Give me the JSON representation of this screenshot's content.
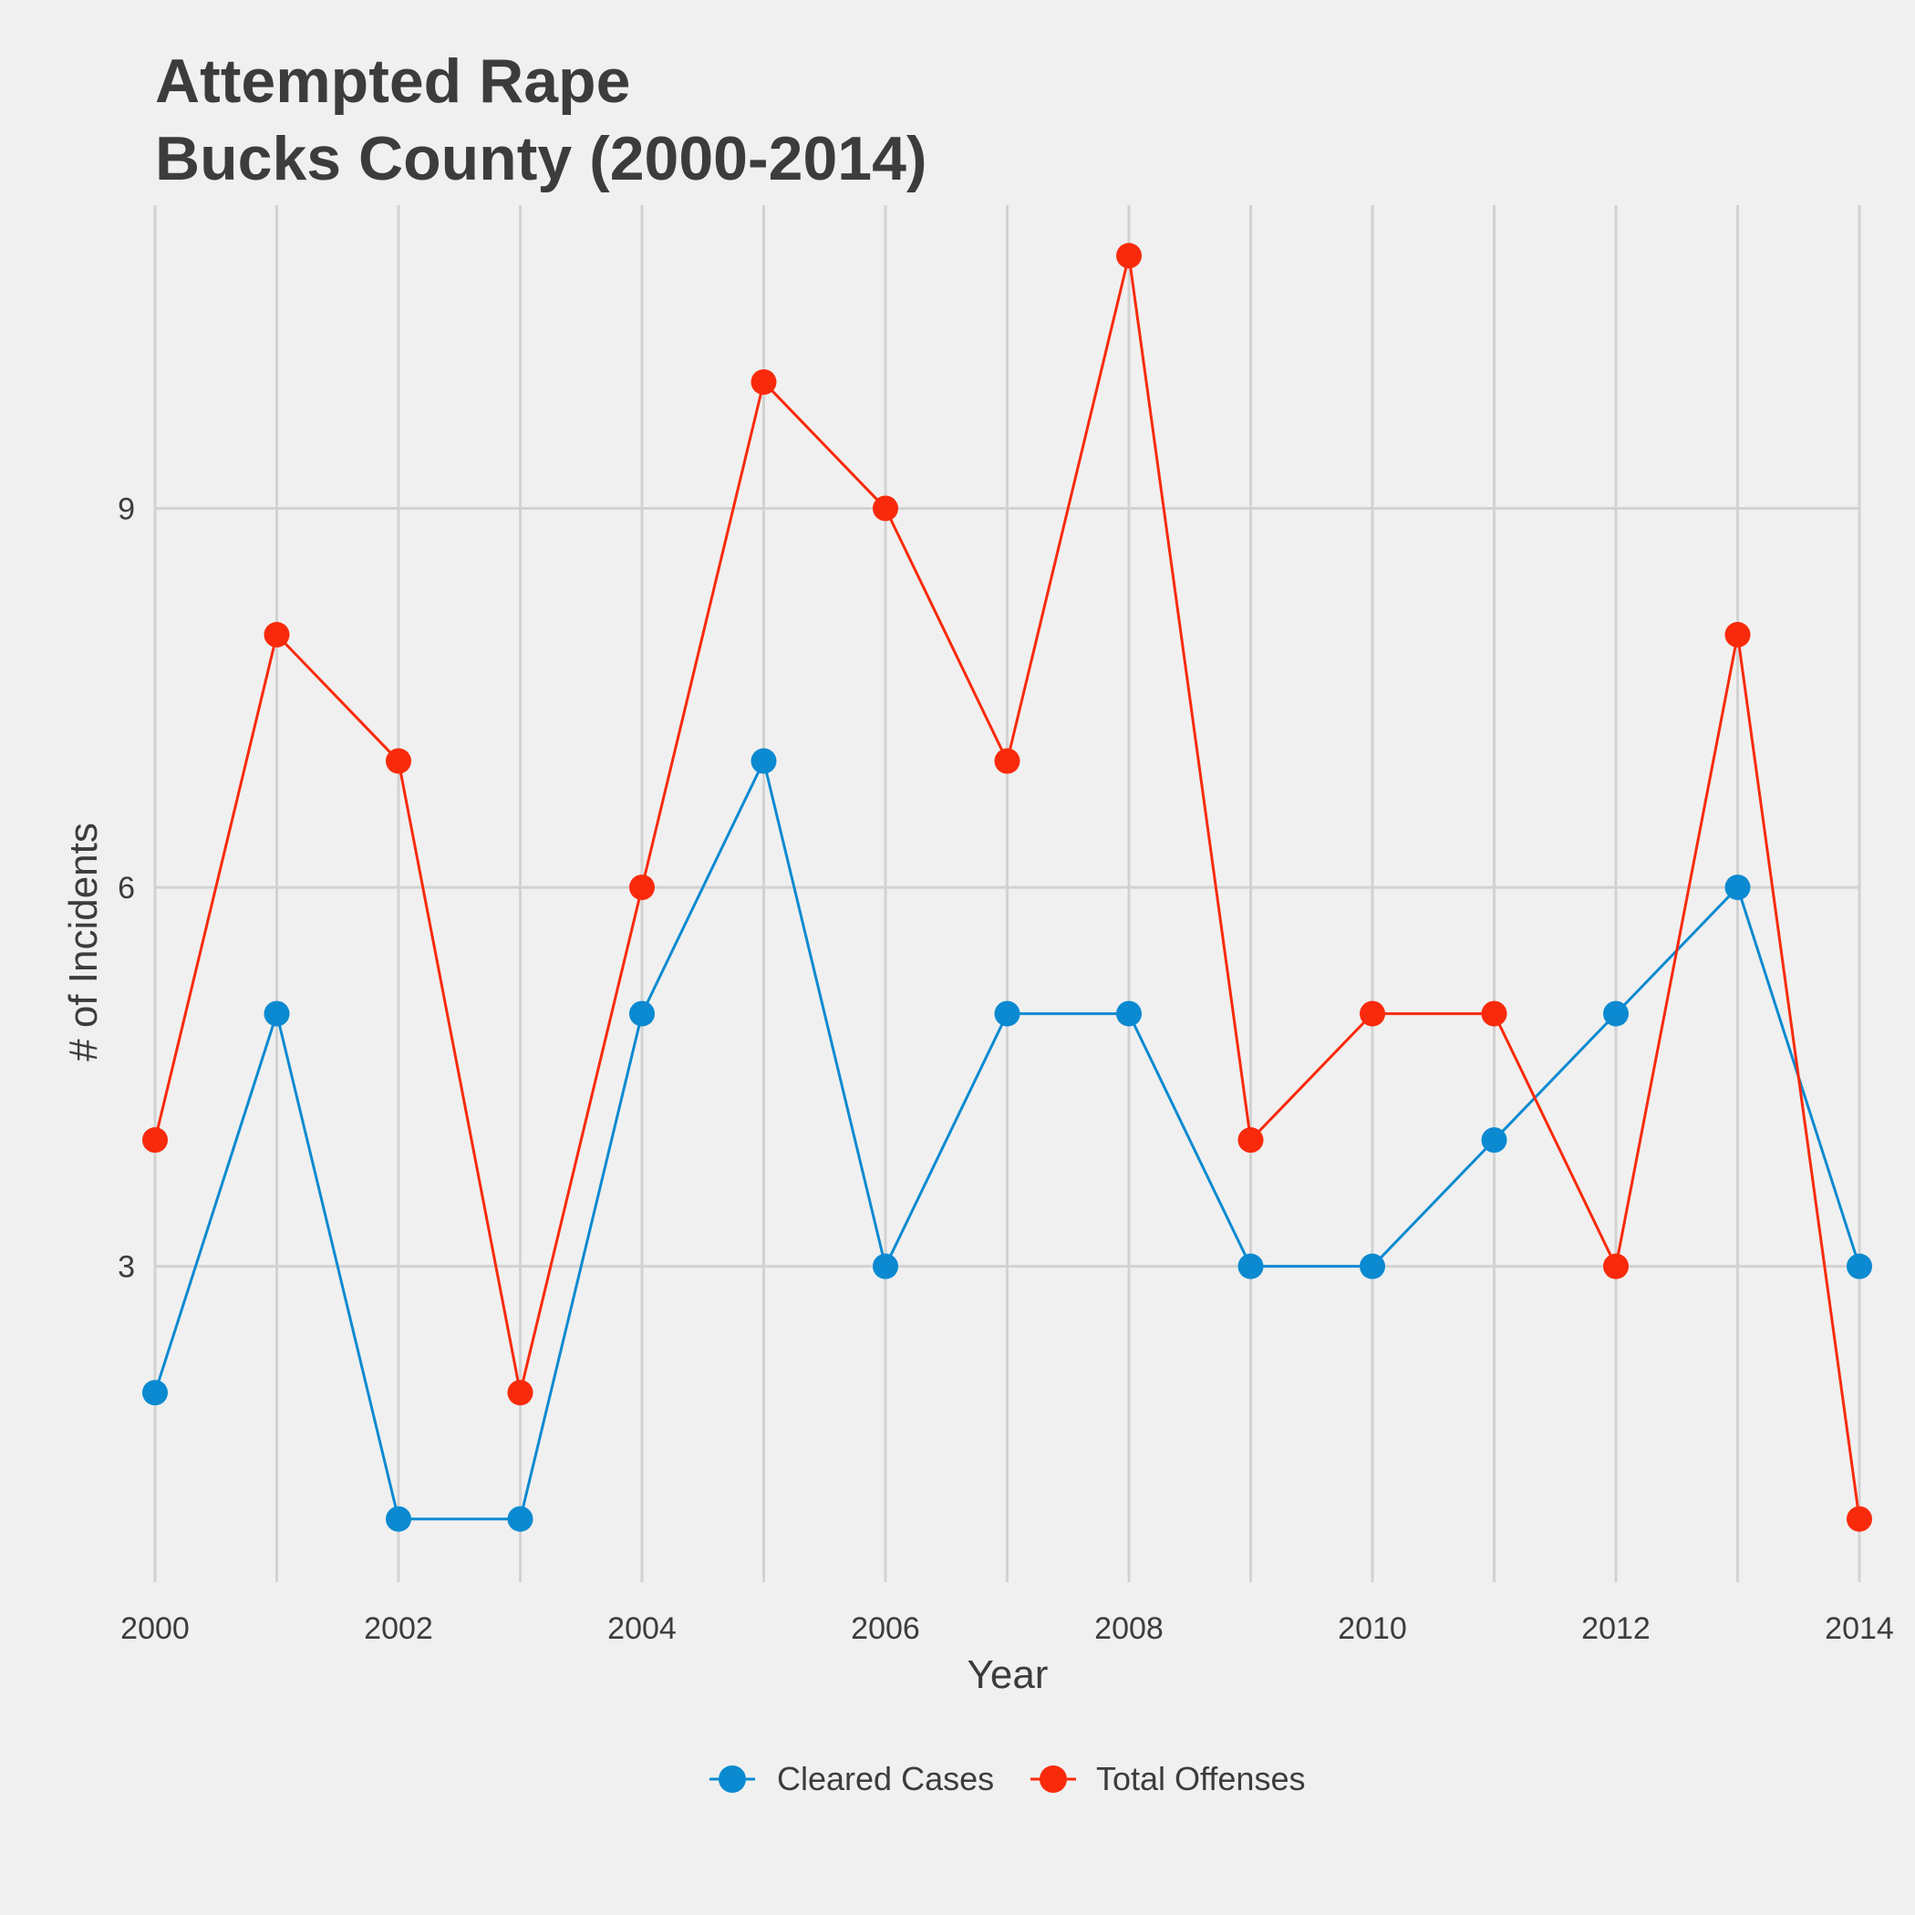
{
  "chart_data": {
    "type": "line",
    "title_lines": [
      "Attempted Rape",
      "Bucks County (2000-2014)"
    ],
    "xlabel": "Year",
    "ylabel": "# of Incidents",
    "x": [
      2000,
      2001,
      2002,
      2003,
      2004,
      2005,
      2006,
      2007,
      2008,
      2009,
      2010,
      2011,
      2012,
      2013,
      2014
    ],
    "xlim": [
      2000,
      2014
    ],
    "ylim": [
      0.5,
      11.4
    ],
    "x_ticks": [
      2000,
      2002,
      2004,
      2006,
      2008,
      2010,
      2012,
      2014
    ],
    "x_tick_labels": [
      "2000",
      "2002",
      "2004",
      "2006",
      "2008",
      "2010",
      "2012",
      "2014"
    ],
    "y_ticks": [
      3,
      6,
      9
    ],
    "y_tick_labels": [
      "3",
      "6",
      "9"
    ],
    "grid": true,
    "legend_position": "bottom",
    "series": [
      {
        "name": "Cleared Cases",
        "color": "#0b8ad1",
        "values": [
          2,
          5,
          1,
          1,
          5,
          7,
          3,
          5,
          5,
          3,
          3,
          4,
          5,
          6,
          3
        ]
      },
      {
        "name": "Total Offenses",
        "color": "#f92a0b",
        "values": [
          4,
          8,
          7,
          2,
          6,
          10,
          9,
          7,
          11,
          4,
          5,
          5,
          3,
          8,
          1
        ]
      }
    ]
  }
}
